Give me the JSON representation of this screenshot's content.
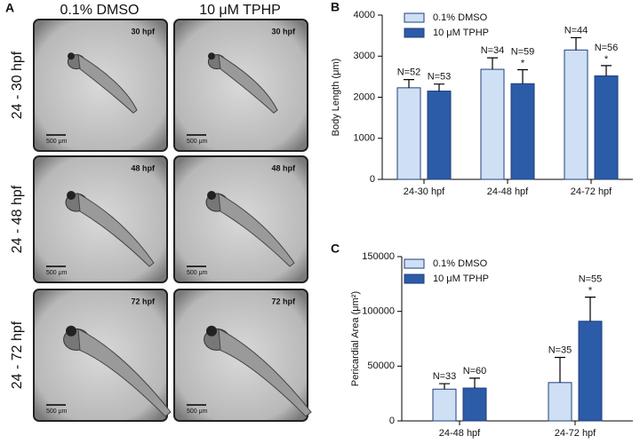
{
  "panel_a": {
    "label": "A",
    "columns": [
      "0.1% DMSO",
      "10 μM TPHP"
    ],
    "rows": [
      {
        "label": "24 - 30 hpf",
        "stage": "30 hpf"
      },
      {
        "label": "24 - 48 hpf",
        "stage": "48 hpf"
      },
      {
        "label": "24 - 72 hpf",
        "stage": "72 hpf"
      }
    ],
    "scale_bar": "500 μm"
  },
  "chart_data": [
    {
      "type": "bar",
      "panel": "B",
      "y_label": "Body Length (μm)",
      "categories": [
        "24-30 hpf",
        "24-48 hpf",
        "24-72 hpf"
      ],
      "series": [
        {
          "name": "0.1% DMSO",
          "color": "#cfe0f5",
          "values": [
            2230,
            2680,
            3150
          ],
          "errors": [
            200,
            280,
            300
          ],
          "annotations": [
            "N=52",
            "N=34",
            "N=44"
          ],
          "significance": [
            null,
            null,
            null
          ]
        },
        {
          "name": "10 μM TPHP",
          "color": "#2c5ba8",
          "values": [
            2150,
            2330,
            2520
          ],
          "errors": [
            170,
            340,
            250
          ],
          "annotations": [
            "N=53",
            "N=59",
            "N=56"
          ],
          "significance": [
            null,
            "*",
            "*"
          ]
        }
      ],
      "ylim": [
        0,
        4000
      ],
      "yticks": [
        0,
        1000,
        2000,
        3000,
        4000
      ],
      "legend": "upper left"
    },
    {
      "type": "bar",
      "panel": "C",
      "y_label": "Pericardial Area (μm²)",
      "categories": [
        "24-48 hpf",
        "24-72 hpf"
      ],
      "series": [
        {
          "name": "0.1% DMSO",
          "color": "#cfe0f5",
          "values": [
            29000,
            35000
          ],
          "errors": [
            5000,
            23000
          ],
          "annotations": [
            "N=33",
            "N=35"
          ],
          "significance": [
            null,
            null
          ]
        },
        {
          "name": "10 μM TPHP",
          "color": "#2c5ba8",
          "values": [
            30000,
            91000
          ],
          "errors": [
            9000,
            22000
          ],
          "annotations": [
            "N=60",
            "N=55"
          ],
          "significance": [
            null,
            "*"
          ]
        }
      ],
      "ylim": [
        0,
        150000
      ],
      "yticks": [
        0,
        50000,
        100000,
        150000
      ],
      "legend": "upper left"
    }
  ]
}
